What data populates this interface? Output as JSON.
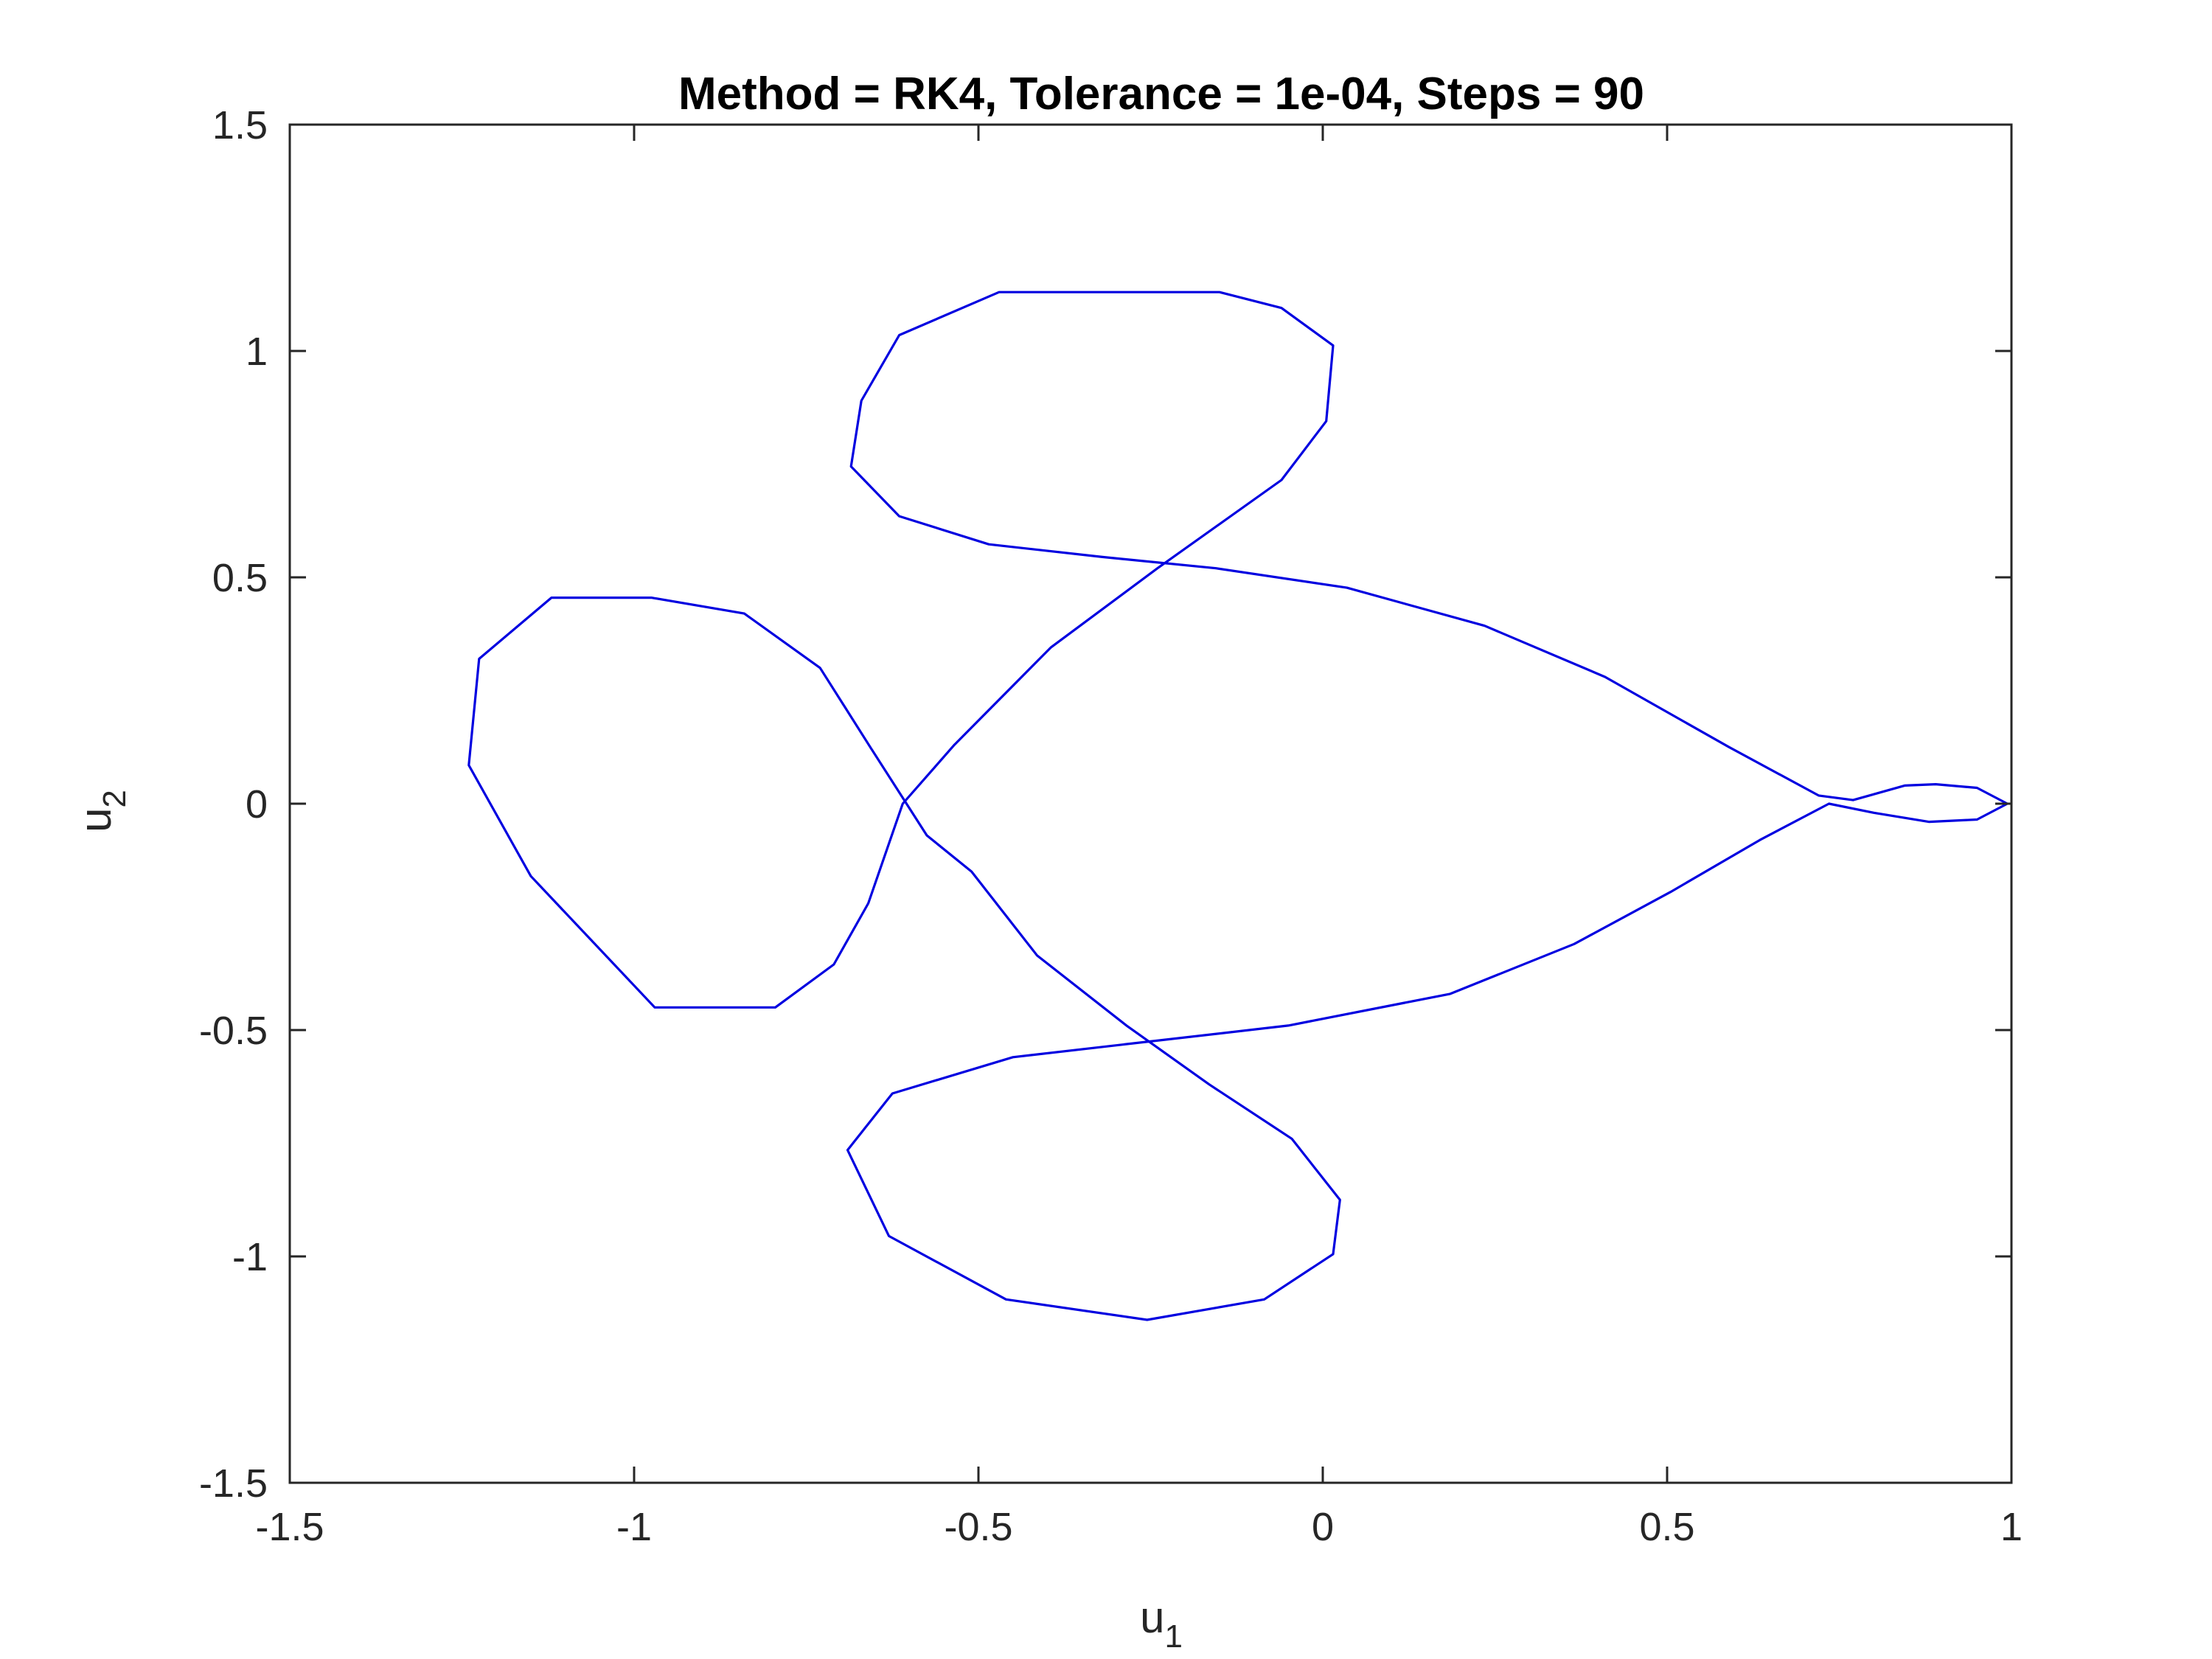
{
  "chart_data": {
    "type": "line",
    "title": "Method = RK4, Tolerance = 1e-04, Steps = 90",
    "xlabel": {
      "base": "u",
      "sub": "1"
    },
    "ylabel": {
      "base": "u",
      "sub": "2"
    },
    "xlim": [
      -1.5,
      1.0
    ],
    "ylim": [
      -1.5,
      1.5
    ],
    "xticks": [
      -1.5,
      -1.0,
      -0.5,
      0.0,
      0.5,
      1.0
    ],
    "xtick_labels": [
      "-1.5",
      "-1",
      "-0.5",
      "0",
      "0.5",
      "1"
    ],
    "yticks": [
      -1.5,
      -1.0,
      -0.5,
      0.0,
      0.5,
      1.0,
      1.5
    ],
    "ytick_labels": [
      "-1.5",
      "-1",
      "-0.5",
      "0",
      "0.5",
      "1",
      "1.5"
    ],
    "grid": false,
    "line_color": "#0000e0",
    "series": [
      {
        "x": [
          0.994,
          0.95,
          0.89,
          0.845,
          0.77,
          0.72,
          0.59,
          0.41,
          0.235,
          0.035,
          -0.155,
          -0.32,
          -0.485,
          -0.615,
          -0.685,
          -0.67,
          -0.615,
          -0.47,
          -0.37,
          -0.15,
          -0.06,
          0.015,
          0.005,
          -0.06,
          -0.24,
          -0.395,
          -0.535,
          -0.61,
          -0.66,
          -0.71,
          -0.795,
          -0.97,
          -1.15,
          -1.24,
          -1.225,
          -1.12,
          -0.975,
          -0.84,
          -0.73,
          -0.655,
          -0.575,
          -0.51,
          -0.415,
          -0.285,
          -0.165,
          -0.045,
          0.025,
          0.015,
          -0.085,
          -0.255,
          -0.46,
          -0.63,
          -0.69,
          -0.625,
          -0.45,
          -0.05,
          0.185,
          0.365,
          0.505,
          0.635,
          0.735,
          0.8,
          0.88,
          0.95,
          0.994
        ],
        "y": [
          0.0,
          0.035,
          0.043,
          0.04,
          0.008,
          0.018,
          0.125,
          0.28,
          0.393,
          0.477,
          0.52,
          0.545,
          0.573,
          0.635,
          0.745,
          0.89,
          1.035,
          1.13,
          1.13,
          1.13,
          1.095,
          1.012,
          0.845,
          0.715,
          0.52,
          0.345,
          0.13,
          0.0,
          -0.22,
          -0.355,
          -0.45,
          -0.45,
          -0.16,
          0.085,
          0.32,
          0.455,
          0.455,
          0.42,
          0.3,
          0.12,
          -0.07,
          -0.15,
          -0.335,
          -0.49,
          -0.62,
          -0.74,
          -0.875,
          -0.995,
          -1.095,
          -1.14,
          -1.095,
          -0.955,
          -0.765,
          -0.64,
          -0.56,
          -0.49,
          -0.42,
          -0.31,
          -0.195,
          -0.08,
          0.0,
          -0.02,
          -0.04,
          -0.035,
          0.0
        ]
      }
    ]
  }
}
